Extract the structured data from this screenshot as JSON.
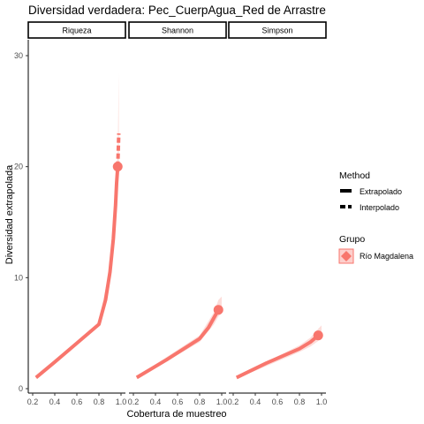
{
  "chart_data": {
    "type": "line",
    "title": "Diversidad verdadera: Pec_CuerpAgua_Red de Arrastre",
    "xlabel": "Cobertura de muestreo",
    "ylabel": "Diversidad extrapolada",
    "xlim": [
      0.2,
      1.0
    ],
    "ylim": [
      0,
      30
    ],
    "x_ticks": [
      0.2,
      0.4,
      0.6,
      0.8,
      1.0
    ],
    "x_tick_labels": [
      "0.2",
      "0.4",
      "0.6",
      "0.8",
      "1.0"
    ],
    "y_ticks": [
      0,
      10,
      20,
      30
    ],
    "y_tick_labels": [
      "0",
      "10",
      "20",
      "30"
    ],
    "line_color": "#F8766D",
    "ribbon_color": "#F8766D",
    "legend_placement": "right",
    "legend": {
      "method_title": "Method",
      "method_entries": [
        "Extrapolado",
        "Interpolado"
      ],
      "group_title": "Grupo",
      "group_entries": [
        "Río Magdalena"
      ]
    },
    "panels": [
      {
        "name": "Riqueza",
        "series": [
          {
            "name": "Interpolado",
            "x": [
              0.23,
              0.4,
              0.6,
              0.8,
              0.86,
              0.9,
              0.93,
              0.95,
              0.96,
              0.97
            ],
            "y": [
              1.0,
              2.4,
              4.1,
              5.8,
              8.0,
              10.5,
              13.5,
              16.5,
              18.5,
              20.0
            ]
          },
          {
            "name": "Extrapolado",
            "x": [
              0.97,
              0.975,
              0.98
            ],
            "y": [
              20.0,
              21.5,
              23.0
            ]
          }
        ],
        "ribbon": {
          "x": [
            0.23,
            0.8,
            0.9,
            0.95,
            0.97,
            0.98
          ],
          "lower": [
            0.9,
            5.6,
            10.0,
            15.8,
            18.5,
            19.5
          ],
          "upper": [
            1.1,
            6.0,
            11.0,
            17.2,
            21.5,
            28.5
          ]
        },
        "point": {
          "x": 0.97,
          "y": 20.0
        }
      },
      {
        "name": "Shannon",
        "series": [
          {
            "name": "Interpolado",
            "x": [
              0.23,
              0.5,
              0.8,
              0.88,
              0.93,
              0.97
            ],
            "y": [
              1.0,
              2.6,
              4.5,
              5.5,
              6.4,
              7.1
            ]
          }
        ],
        "ribbon": {
          "x": [
            0.23,
            0.8,
            0.93,
            0.97,
            1.0
          ],
          "lower": [
            0.9,
            4.2,
            5.8,
            6.5,
            6.8
          ],
          "upper": [
            1.1,
            4.8,
            6.9,
            8.0,
            8.3
          ]
        },
        "point": {
          "x": 0.97,
          "y": 7.1
        }
      },
      {
        "name": "Simpson",
        "series": [
          {
            "name": "Interpolado",
            "x": [
              0.23,
              0.5,
              0.8,
              0.9,
              0.97
            ],
            "y": [
              1.0,
              2.3,
              3.6,
              4.2,
              4.8
            ]
          }
        ],
        "ribbon": {
          "x": [
            0.23,
            0.8,
            0.9,
            0.97,
            1.0
          ],
          "lower": [
            0.9,
            3.3,
            3.8,
            4.3,
            4.5
          ],
          "upper": [
            1.1,
            3.9,
            4.6,
            5.4,
            5.7
          ]
        },
        "point": {
          "x": 0.97,
          "y": 4.8
        }
      }
    ]
  }
}
